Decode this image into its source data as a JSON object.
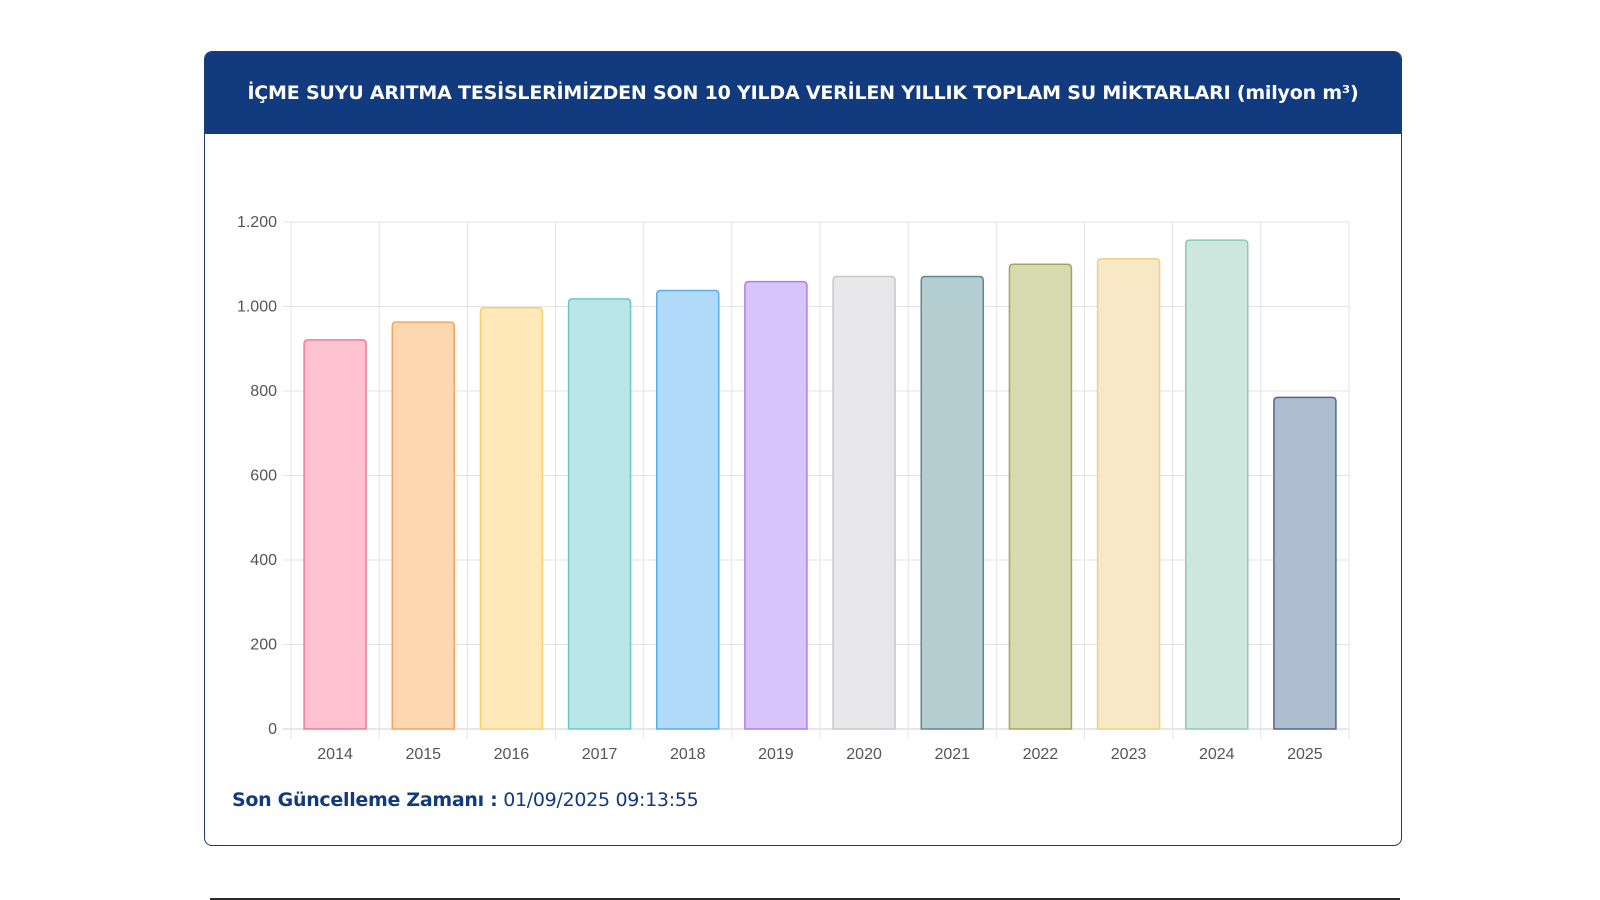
{
  "header": {
    "title": "İÇME SUYU ARITMA TESİSLERİMİZDEN SON 10 YILDA VERİLEN YILLIK TOPLAM SU MİKTARLARI (milyon m³)"
  },
  "footer": {
    "label": "Son Güncelleme Zamanı :",
    "value": "01/09/2025 09:13:55"
  },
  "colors": {
    "header_bg": "#123a7e",
    "border": "#1c3a7a",
    "grid": "#e3e3e3"
  },
  "chart_data": {
    "type": "bar",
    "title": "İÇME SUYU ARITMA TESİSLERİMİZDEN SON 10 YILDA VERİLEN YILLIK TOPLAM SU MİKTARLARI (milyon m³)",
    "xlabel": "",
    "ylabel": "",
    "ylim": [
      0,
      1200
    ],
    "yticks": [
      0,
      200,
      400,
      600,
      800,
      1000,
      1200
    ],
    "ytick_labels": [
      "0",
      "200",
      "400",
      "600",
      "800",
      "1.000",
      "1.200"
    ],
    "grid": true,
    "legend": "none",
    "categories": [
      "2014",
      "2015",
      "2016",
      "2017",
      "2018",
      "2019",
      "2020",
      "2021",
      "2022",
      "2023",
      "2024",
      "2025"
    ],
    "values": [
      921,
      963,
      997,
      1018,
      1038,
      1059,
      1071,
      1071,
      1100,
      1113,
      1157,
      785
    ],
    "bar_fill": [
      "#ffc2d1",
      "#ffd8b1",
      "#ffe9b8",
      "#b9e6e6",
      "#b0daf7",
      "#d8c4fb",
      "#e8e8ea",
      "#b3cdd1",
      "#d5dbaf",
      "#f8e9c6",
      "#cde7df",
      "#adbccf"
    ],
    "bar_stroke": [
      "#f07a9a",
      "#f5a35a",
      "#f5cf70",
      "#6ec7c7",
      "#5aaee8",
      "#a87ef2",
      "#c8c8cc",
      "#5d8a92",
      "#9ea85a",
      "#f0cf80",
      "#8cc9b8",
      "#51678f"
    ]
  }
}
